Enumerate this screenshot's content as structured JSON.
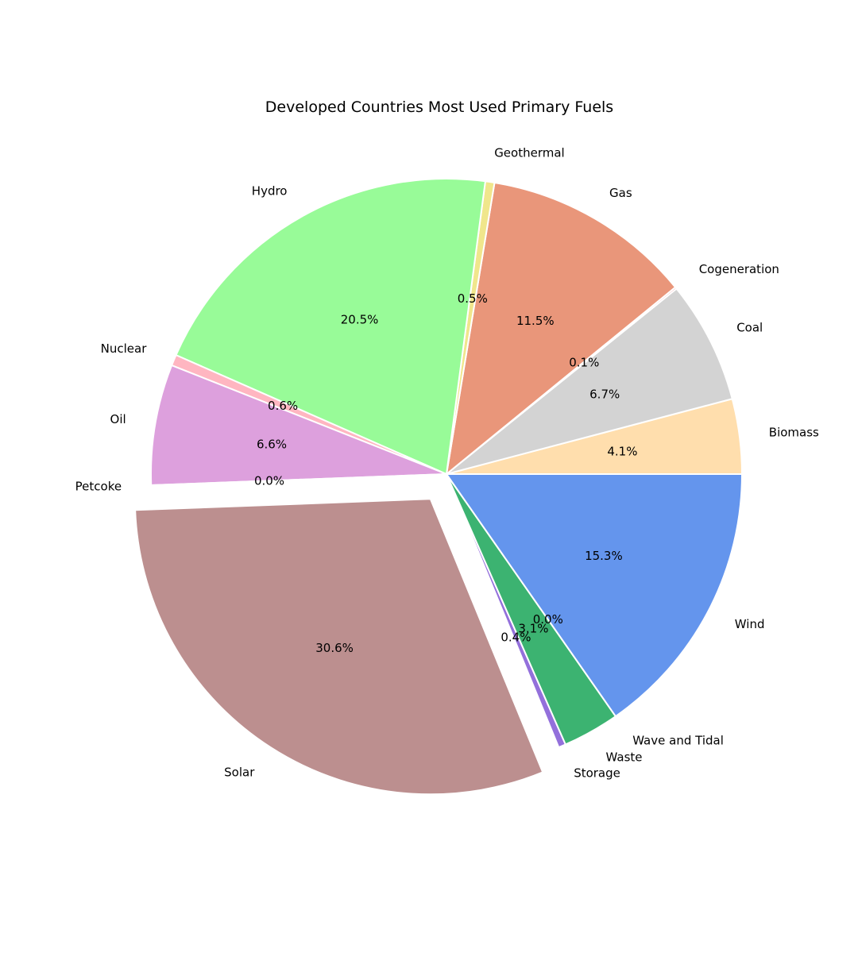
{
  "chart_data": {
    "type": "pie",
    "title": "Developed Countries Most Used Primary Fuels",
    "start_angle_deg": 0,
    "direction": "counterclockwise",
    "slices": [
      {
        "label": "Biomass",
        "value": 4.1,
        "pct_label": "4.1%",
        "color": "#FFDEAD",
        "exploded": false
      },
      {
        "label": "Coal",
        "value": 6.7,
        "pct_label": "6.7%",
        "color": "#D3D3D3",
        "exploded": false
      },
      {
        "label": "Cogeneration",
        "value": 0.1,
        "pct_label": "0.1%",
        "color": "#F08080",
        "exploded": false
      },
      {
        "label": "Gas",
        "value": 11.5,
        "pct_label": "11.5%",
        "color": "#E9967A",
        "exploded": false
      },
      {
        "label": "Geothermal",
        "value": 0.5,
        "pct_label": "0.5%",
        "color": "#F0E68C",
        "exploded": false
      },
      {
        "label": "Hydro",
        "value": 20.5,
        "pct_label": "20.5%",
        "color": "#98FB98",
        "exploded": false
      },
      {
        "label": "Nuclear",
        "value": 0.6,
        "pct_label": "0.6%",
        "color": "#FFB6C1",
        "exploded": false
      },
      {
        "label": "Oil",
        "value": 6.6,
        "pct_label": "6.6%",
        "color": "#DDA0DD",
        "exploded": false
      },
      {
        "label": "Petcoke",
        "value": 0.0,
        "pct_label": "0.0%",
        "color": "#FFFFFF",
        "exploded": false
      },
      {
        "label": "Solar",
        "value": 30.6,
        "pct_label": "30.6%",
        "color": "#BC8F8F",
        "exploded": true
      },
      {
        "label": "Storage",
        "value": 0.4,
        "pct_label": "0.4%",
        "color": "#9370DB",
        "exploded": false
      },
      {
        "label": "Waste",
        "value": 3.1,
        "pct_label": "3.1%",
        "color": "#3CB371",
        "exploded": false
      },
      {
        "label": "Wave and Tidal",
        "value": 0.0,
        "pct_label": "0.0%",
        "color": "#EEE8AA",
        "exploded": false
      },
      {
        "label": "Wind",
        "value": 15.3,
        "pct_label": "15.3%",
        "color": "#6495ED",
        "exploded": false
      }
    ]
  }
}
